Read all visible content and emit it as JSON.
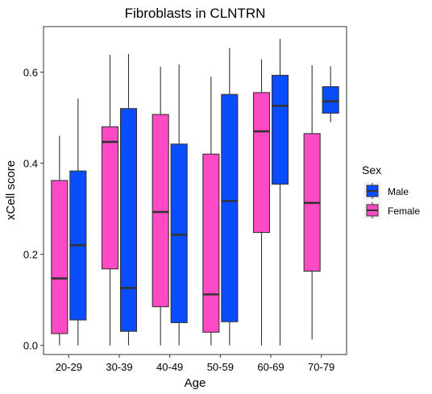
{
  "chart_data": {
    "type": "boxplot",
    "title": "Fibroblasts in CLNTRN",
    "xlabel": "Age",
    "ylabel": "xCell score",
    "ylim": [
      -0.02,
      0.7
    ],
    "y_ticks": [
      "0.0",
      "0.2",
      "0.4",
      "0.6"
    ],
    "y_tick_values": [
      0.0,
      0.2,
      0.4,
      0.6
    ],
    "categories": [
      "20-29",
      "30-39",
      "40-49",
      "50-59",
      "60-69",
      "70-79"
    ],
    "legend": {
      "title": "Sex",
      "position": "right",
      "entries": [
        "Male",
        "Female"
      ]
    },
    "colors": {
      "Female": "#ff4ac6",
      "Male": "#0a4cff"
    },
    "series": [
      {
        "name": "Female",
        "boxes": [
          {
            "category": "20-29",
            "min": 0.0,
            "q1": 0.026,
            "median": 0.147,
            "q3": 0.362,
            "max": 0.46
          },
          {
            "category": "30-39",
            "min": 0.0,
            "q1": 0.168,
            "median": 0.447,
            "q3": 0.48,
            "max": 0.638
          },
          {
            "category": "40-49",
            "min": 0.0,
            "q1": 0.085,
            "median": 0.293,
            "q3": 0.507,
            "max": 0.612
          },
          {
            "category": "50-59",
            "min": 0.0,
            "q1": 0.029,
            "median": 0.112,
            "q3": 0.42,
            "max": 0.59
          },
          {
            "category": "60-69",
            "min": 0.0,
            "q1": 0.248,
            "median": 0.47,
            "q3": 0.555,
            "max": 0.628
          },
          {
            "category": "70-79",
            "min": 0.013,
            "q1": 0.163,
            "median": 0.313,
            "q3": 0.465,
            "max": 0.615
          }
        ]
      },
      {
        "name": "Male",
        "boxes": [
          {
            "category": "20-29",
            "min": 0.0,
            "q1": 0.056,
            "median": 0.22,
            "q3": 0.383,
            "max": 0.542
          },
          {
            "category": "30-39",
            "min": 0.0,
            "q1": 0.031,
            "median": 0.126,
            "q3": 0.52,
            "max": 0.64
          },
          {
            "category": "40-49",
            "min": 0.0,
            "q1": 0.05,
            "median": 0.243,
            "q3": 0.442,
            "max": 0.617
          },
          {
            "category": "50-59",
            "min": 0.0,
            "q1": 0.052,
            "median": 0.317,
            "q3": 0.551,
            "max": 0.653
          },
          {
            "category": "60-69",
            "min": 0.0,
            "q1": 0.354,
            "median": 0.526,
            "q3": 0.593,
            "max": 0.673
          },
          {
            "category": "70-79",
            "min": 0.49,
            "q1": 0.51,
            "median": 0.536,
            "q3": 0.568,
            "max": 0.613
          }
        ]
      }
    ]
  }
}
